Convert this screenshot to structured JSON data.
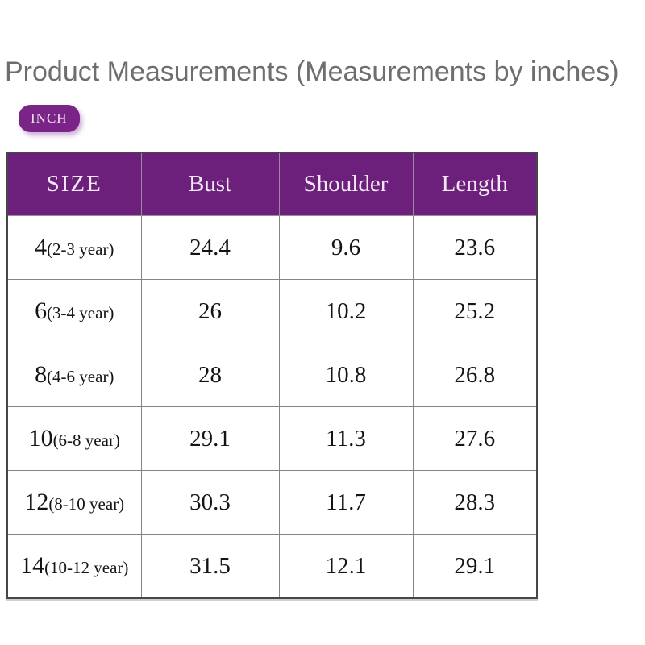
{
  "page": {
    "title": "Product Measurements (Measurements by inches)",
    "unit_badge": "INCH"
  },
  "colors": {
    "header_purple": "#6d1f7c",
    "badge_purple": "#7b2488",
    "title_gray": "#6e6e6e",
    "grid_line": "#858585",
    "header_text": "#f2e9f4"
  },
  "table": {
    "columns": [
      "SIZE",
      "Bust",
      "Shoulder",
      "Length"
    ],
    "rows": [
      {
        "size": "4",
        "age": "(2-3 year)",
        "bust": "24.4",
        "shoulder": "9.6",
        "length": "23.6"
      },
      {
        "size": "6",
        "age": "(3-4 year)",
        "bust": "26",
        "shoulder": "10.2",
        "length": "25.2"
      },
      {
        "size": "8",
        "age": "(4-6 year)",
        "bust": "28",
        "shoulder": "10.8",
        "length": "26.8"
      },
      {
        "size": "10",
        "age": "(6-8 year)",
        "bust": "29.1",
        "shoulder": "11.3",
        "length": "27.6"
      },
      {
        "size": "12",
        "age": "(8-10 year)",
        "bust": "30.3",
        "shoulder": "11.7",
        "length": "28.3"
      },
      {
        "size": "14",
        "age": "(10-12 year)",
        "bust": "31.5",
        "shoulder": "12.1",
        "length": "29.1"
      }
    ]
  },
  "chart_data": {
    "type": "table",
    "title": "Product Measurements (Measurements by inches)",
    "unit": "INCH",
    "columns": [
      "SIZE",
      "Bust",
      "Shoulder",
      "Length"
    ],
    "rows": [
      [
        "4(2-3 year)",
        24.4,
        9.6,
        23.6
      ],
      [
        "6(3-4 year)",
        26,
        10.2,
        25.2
      ],
      [
        "8(4-6 year)",
        28,
        10.8,
        26.8
      ],
      [
        "10(6-8 year)",
        29.1,
        11.3,
        27.6
      ],
      [
        "12(8-10 year)",
        30.3,
        11.7,
        28.3
      ],
      [
        "14(10-12 year)",
        31.5,
        12.1,
        29.1
      ]
    ]
  }
}
